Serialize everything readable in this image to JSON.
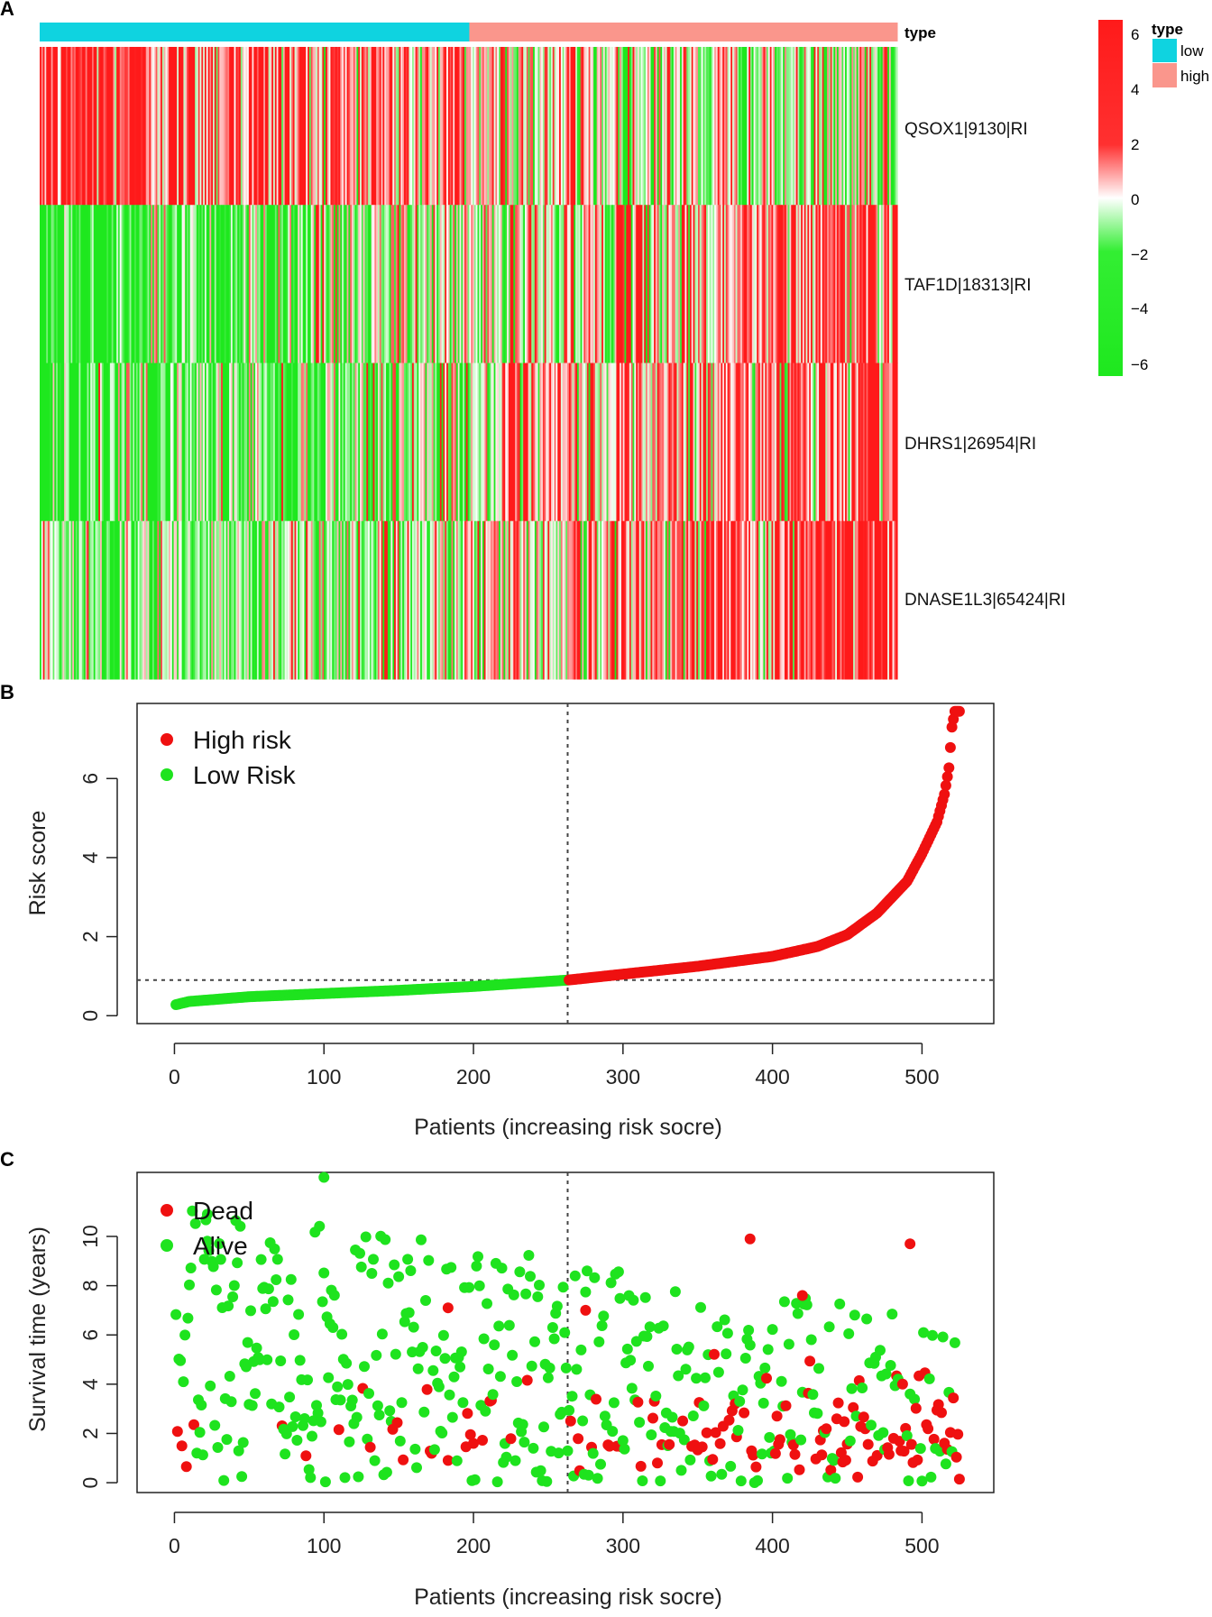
{
  "panels": {
    "a": "A",
    "b": "B",
    "c": "C"
  },
  "colors": {
    "low_bar": "#0fd3e0",
    "high_bar": "#fa968c",
    "red": "#ff1a1a",
    "green": "#1ee81e",
    "dot_red": "#ef1010",
    "dot_green": "#1ee31e",
    "frame": "#222222",
    "dash": "#444444"
  },
  "chart_data": [
    {
      "type": "heatmap",
      "panel": "A",
      "annotation_label": "type",
      "annotation_groups": [
        {
          "name": "low",
          "count": 263,
          "color": "#0fd3e0"
        },
        {
          "name": "high",
          "count": 262,
          "color": "#fa968c"
        }
      ],
      "rows": [
        "QSOX1|9130|RI",
        "TAF1D|18313|RI",
        "DHRS1|26954|RI",
        "DNASE1L3|65424|RI"
      ],
      "n_columns": 525,
      "row_trend_low_to_high": [
        {
          "row": "QSOX1|9130|RI",
          "low_group_mean": 3.0,
          "high_group_mean": -1.5
        },
        {
          "row": "TAF1D|18313|RI",
          "low_group_mean": -3.0,
          "high_group_mean": 2.5
        },
        {
          "row": "DHRS1|26954|RI",
          "low_group_mean": -3.0,
          "high_group_mean": 2.8
        },
        {
          "row": "DNASE1L3|65424|RI",
          "low_group_mean": -2.2,
          "high_group_mean": 3.0
        }
      ],
      "color_scale": {
        "range": [
          -6,
          6
        ],
        "ticks": [
          "6",
          "4",
          "2",
          "0",
          "−2",
          "−4",
          "−6"
        ],
        "low_color": "#1ee81e",
        "mid_color": "#ffffff",
        "high_color": "#ff1a1a"
      },
      "legend": {
        "title": "type",
        "items": [
          "low",
          "high"
        ]
      }
    },
    {
      "type": "scatter",
      "panel": "B",
      "xlabel": "Patients (increasing risk socre)",
      "ylabel": "Risk score",
      "xlim": [
        -25,
        548
      ],
      "ylim": [
        -0.2,
        7.9
      ],
      "xticks": [
        "0",
        "100",
        "200",
        "300",
        "400",
        "500"
      ],
      "yticks": [
        "0",
        "2",
        "4",
        "6"
      ],
      "n_patients": 525,
      "cutoff_index": 263,
      "cutoff_value": 0.9,
      "curve_knots": {
        "x": [
          1,
          10,
          50,
          100,
          150,
          200,
          263,
          300,
          350,
          400,
          430,
          450,
          470,
          490,
          500,
          510,
          515,
          518,
          520,
          522,
          525
        ],
        "y": [
          0.28,
          0.36,
          0.48,
          0.56,
          0.64,
          0.74,
          0.9,
          1.05,
          1.25,
          1.5,
          1.75,
          2.05,
          2.6,
          3.4,
          4.1,
          4.9,
          5.6,
          6.27,
          7.3,
          7.7,
          7.7
        ]
      },
      "series": [
        {
          "name": "High risk",
          "color": "#ef1010"
        },
        {
          "name": "Low Risk",
          "color": "#1ee31e"
        }
      ]
    },
    {
      "type": "scatter",
      "panel": "C",
      "xlabel": "Patients (increasing risk socre)",
      "ylabel": "Survival time (years)",
      "xlim": [
        -25,
        548
      ],
      "ylim": [
        -0.4,
        12.6
      ],
      "xticks": [
        "0",
        "100",
        "200",
        "300",
        "400",
        "500"
      ],
      "yticks": [
        "0",
        "2",
        "4",
        "6",
        "8",
        "10"
      ],
      "cutoff_index": 263,
      "n_points": 525,
      "series": [
        {
          "name": "Dead",
          "color": "#ef1010",
          "approx_count": 100
        },
        {
          "name": "Alive",
          "color": "#1ee31e",
          "approx_count": 425
        }
      ],
      "highlighted_points": [
        {
          "x": 100,
          "y": 12.4,
          "status": "Alive"
        },
        {
          "x": 22,
          "y": 10.9,
          "status": "Alive"
        },
        {
          "x": 385,
          "y": 9.9,
          "status": "Dead"
        },
        {
          "x": 492,
          "y": 9.7,
          "status": "Dead"
        },
        {
          "x": 420,
          "y": 7.6,
          "status": "Dead"
        },
        {
          "x": 183,
          "y": 7.1,
          "status": "Dead"
        },
        {
          "x": 275,
          "y": 7.0,
          "status": "Dead"
        }
      ]
    }
  ]
}
